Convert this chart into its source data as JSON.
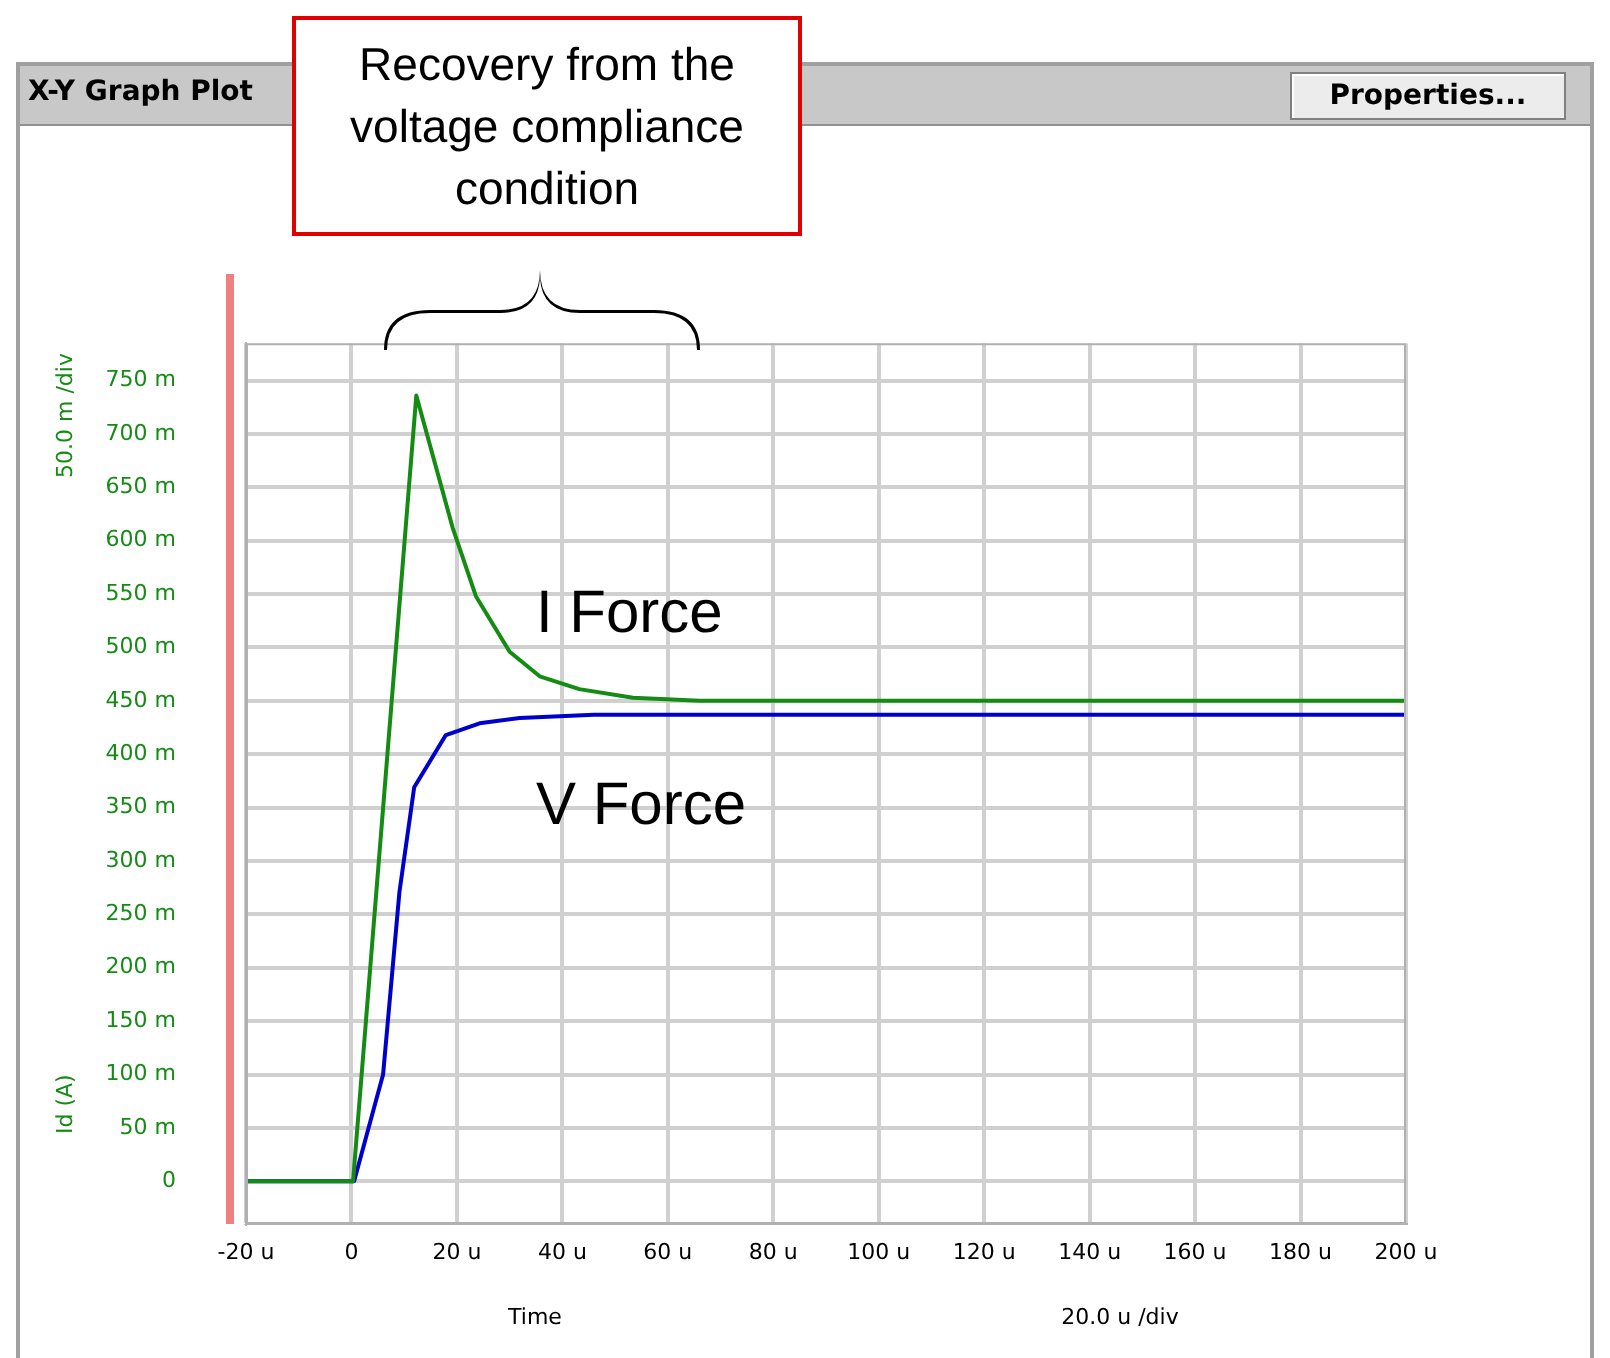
{
  "chart_data": {
    "type": "line",
    "title": "X-Y Graph Plot",
    "xlabel": "Time",
    "ylabel": "Id (A)",
    "annotations": [
      "Recovery from the voltage compliance condition",
      "Properties...",
      "50.0 m /div",
      "20.0 u /div"
    ],
    "series": [
      {
        "name": "I Force",
        "color": "#148c14",
        "x": [
          -20,
          0.3,
          12.3,
          19.2,
          23.6,
          30,
          35.7,
          43.2,
          53.4,
          66,
          200
        ],
        "values": [
          0,
          0,
          736,
          612,
          548,
          496,
          473,
          461,
          453,
          450,
          450
        ]
      },
      {
        "name": "V Force",
        "color": "#0000cc",
        "x": [
          -20,
          0.5,
          6,
          9.1,
          11.9,
          17.9,
          24.3,
          31.9,
          46,
          200
        ],
        "values": [
          0,
          0,
          100,
          271,
          369,
          418,
          429,
          434,
          437,
          437
        ]
      }
    ],
    "xlim": [
      -20,
      200
    ],
    "xticks": [
      {
        "value": -20,
        "label": "-20 u"
      },
      0,
      {
        "value": 20,
        "label": "20 u"
      },
      {
        "value": 40,
        "label": "40 u"
      },
      {
        "value": 60,
        "label": "60 u"
      },
      {
        "value": 80,
        "label": "80 u"
      },
      {
        "value": 100,
        "label": "100 u"
      },
      {
        "value": 120,
        "label": "120 u"
      },
      {
        "value": 140,
        "label": "140 u"
      },
      {
        "value": 160,
        "label": "160 u"
      },
      {
        "value": 180,
        "label": "180 u"
      },
      {
        "value": 200,
        "label": "200 u"
      }
    ],
    "ylim": [
      -40,
      785
    ],
    "yticks": [
      0,
      {
        "value": 50,
        "label": "50 m"
      },
      {
        "value": 100,
        "label": "100 m"
      },
      {
        "value": 150,
        "label": "150 m"
      },
      {
        "value": 200,
        "label": "200 m"
      },
      {
        "value": 250,
        "label": "250 m"
      },
      {
        "value": 300,
        "label": "300 m"
      },
      {
        "value": 350,
        "label": "350 m"
      },
      {
        "value": 400,
        "label": "400 m"
      },
      {
        "value": 450,
        "label": "450 m"
      },
      {
        "value": 500,
        "label": "500 m"
      },
      {
        "value": 550,
        "label": "550 m"
      },
      {
        "value": 600,
        "label": "600 m"
      },
      {
        "value": 650,
        "label": "650 m"
      },
      {
        "value": 700,
        "label": "700 m"
      },
      {
        "value": 750,
        "label": "750 m"
      }
    ],
    "grid": true,
    "legend": false,
    "marker": "none",
    "line_style": "solid"
  }
}
